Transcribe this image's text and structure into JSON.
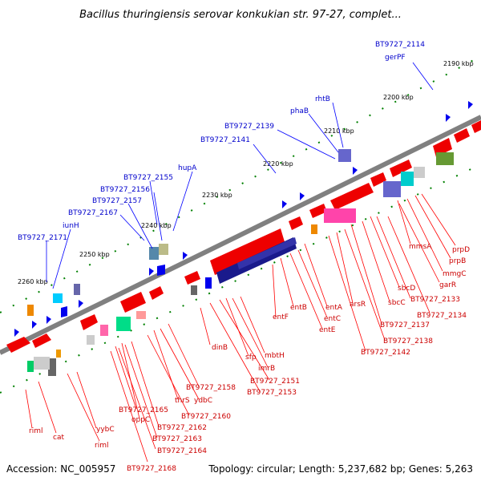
{
  "title": "Bacillus thuringiensis serovar konkukian str. 97-27, complet...",
  "footer": {
    "accession": "Accession: NC_005957",
    "topology": "Topology: circular; Length: 5,237,682 bp; Genes: 5,263"
  },
  "colors": {
    "backbone": "#808080",
    "cds_forward": "#ee0000",
    "feature_blue": "#0000ee",
    "label_blue": "#0000cc",
    "label_red": "#cc0000",
    "tick_green": "#008000"
  },
  "kbp_labels": [
    "2190 kbp",
    "2200 kbp",
    "2210 kbp",
    "2220 kbp",
    "2230 kbp",
    "2240 kbp",
    "2250 kbp",
    "2260 kbp"
  ],
  "top_labels": [
    "BT9727_2114",
    "gerPF",
    "rhtB",
    "phaB",
    "BT9727_2139",
    "BT9727_2141",
    "hupA",
    "BT9727_2155",
    "BT9727_2156",
    "BT9727_2157",
    "BT9727_2167",
    "iunH",
    "BT9727_2171"
  ],
  "bottom_labels": [
    "prpD",
    "prpB",
    "mmgC",
    "mmsA",
    "garR",
    "sbcD",
    "BT9727_2133",
    "sbcC",
    "BT9727_2134",
    "arsR",
    "BT9727_2137",
    "BT9727_2138",
    "BT9727_2142",
    "entA",
    "entC",
    "entE",
    "entB",
    "entF",
    "mbtH",
    "sfp",
    "imrB",
    "dinB",
    "BT9727_2151",
    "BT9727_2153",
    "BT9727_2158",
    "thrS",
    "ydbC",
    "BT9727_2160",
    "BT9727_2165",
    "oppC",
    "BT9727_2162",
    "BT9727_2163",
    "BT9727_2164",
    "BT9727_2168",
    "yybC",
    "riml",
    "cat",
    "riml"
  ]
}
